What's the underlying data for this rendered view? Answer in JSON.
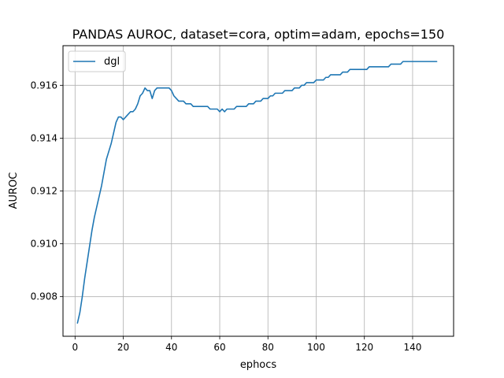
{
  "chart_data": {
    "type": "line",
    "title": "PANDAS AUROC, dataset=cora, optim=adam, epochs=150",
    "xlabel": "ephocs",
    "ylabel": "AUROC",
    "xlim": [
      -5,
      157
    ],
    "ylim": [
      0.9065,
      0.9175
    ],
    "xticks": [
      0,
      20,
      40,
      60,
      80,
      100,
      120,
      140
    ],
    "yticks": [
      0.908,
      0.91,
      0.912,
      0.914,
      0.916
    ],
    "ytick_labels": [
      "0.908",
      "0.910",
      "0.912",
      "0.914",
      "0.916"
    ],
    "grid": true,
    "legend_position": "upper-left",
    "colors": {
      "dgl": "#1f77b4"
    },
    "series": [
      {
        "name": "dgl",
        "x": [
          1,
          2,
          3,
          4,
          5,
          6,
          7,
          8,
          9,
          10,
          11,
          12,
          13,
          14,
          15,
          16,
          17,
          18,
          19,
          20,
          21,
          22,
          23,
          24,
          25,
          26,
          27,
          28,
          29,
          30,
          31,
          32,
          33,
          34,
          35,
          36,
          37,
          38,
          39,
          40,
          41,
          42,
          43,
          44,
          45,
          46,
          47,
          48,
          49,
          50,
          51,
          52,
          53,
          54,
          55,
          56,
          57,
          58,
          59,
          60,
          61,
          62,
          63,
          64,
          65,
          66,
          67,
          68,
          69,
          70,
          71,
          72,
          73,
          74,
          75,
          76,
          77,
          78,
          79,
          80,
          81,
          82,
          83,
          84,
          85,
          86,
          87,
          88,
          89,
          90,
          91,
          92,
          93,
          94,
          95,
          96,
          97,
          98,
          99,
          100,
          101,
          102,
          103,
          104,
          105,
          106,
          107,
          108,
          109,
          110,
          111,
          112,
          113,
          114,
          115,
          116,
          117,
          118,
          119,
          120,
          121,
          122,
          123,
          124,
          125,
          126,
          127,
          128,
          129,
          130,
          131,
          132,
          133,
          134,
          135,
          136,
          137,
          138,
          139,
          140,
          141,
          142,
          143,
          144,
          145,
          146,
          147,
          148,
          149,
          150
        ],
        "y": [
          0.907,
          0.9074,
          0.908,
          0.9087,
          0.9093,
          0.9099,
          0.9105,
          0.911,
          0.9114,
          0.9118,
          0.9122,
          0.9127,
          0.9132,
          0.9135,
          0.9138,
          0.9142,
          0.9146,
          0.9148,
          0.9148,
          0.9147,
          0.9148,
          0.9149,
          0.915,
          0.915,
          0.9151,
          0.9153,
          0.9156,
          0.9157,
          0.9159,
          0.9158,
          0.9158,
          0.9155,
          0.9158,
          0.9159,
          0.9159,
          0.9159,
          0.9159,
          0.9159,
          0.9159,
          0.9158,
          0.9156,
          0.9155,
          0.9154,
          0.9154,
          0.9154,
          0.9153,
          0.9153,
          0.9153,
          0.9152,
          0.9152,
          0.9152,
          0.9152,
          0.9152,
          0.9152,
          0.9152,
          0.9151,
          0.9151,
          0.9151,
          0.9151,
          0.915,
          0.9151,
          0.915,
          0.9151,
          0.9151,
          0.9151,
          0.9151,
          0.9152,
          0.9152,
          0.9152,
          0.9152,
          0.9152,
          0.9153,
          0.9153,
          0.9153,
          0.9154,
          0.9154,
          0.9154,
          0.9155,
          0.9155,
          0.9155,
          0.9156,
          0.9156,
          0.9157,
          0.9157,
          0.9157,
          0.9157,
          0.9158,
          0.9158,
          0.9158,
          0.9158,
          0.9159,
          0.9159,
          0.9159,
          0.916,
          0.916,
          0.9161,
          0.9161,
          0.9161,
          0.9161,
          0.9162,
          0.9162,
          0.9162,
          0.9162,
          0.9163,
          0.9163,
          0.9164,
          0.9164,
          0.9164,
          0.9164,
          0.9164,
          0.9165,
          0.9165,
          0.9165,
          0.9166,
          0.9166,
          0.9166,
          0.9166,
          0.9166,
          0.9166,
          0.9166,
          0.9166,
          0.9167,
          0.9167,
          0.9167,
          0.9167,
          0.9167,
          0.9167,
          0.9167,
          0.9167,
          0.9167,
          0.9168,
          0.9168,
          0.9168,
          0.9168,
          0.9168,
          0.9169,
          0.9169,
          0.9169,
          0.9169,
          0.9169,
          0.9169,
          0.9169,
          0.9169,
          0.9169,
          0.9169,
          0.9169,
          0.9169,
          0.9169,
          0.9169,
          0.9169
        ]
      }
    ]
  }
}
